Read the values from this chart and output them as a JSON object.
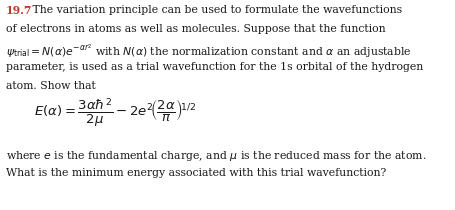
{
  "background_color": "#ffffff",
  "problem_number": "19.7",
  "number_color": "#c0392b",
  "text_color": "#1a1a1a",
  "line1_after": " The variation principle can be used to formulate the wavefunctions",
  "line2": "of electrons in atoms as well as molecules. Suppose that the function",
  "line3a": "$\\psi_{\\mathrm{trial}} = N(\\alpha)e^{-\\alpha r^2}$",
  "line3b": " with $N(\\alpha)$ the normalization constant and $\\alpha$ an adjustable",
  "line4": "parameter, is used as a trial wavefunction for the 1s orbital of the hydrogen",
  "line5": "atom. Show that",
  "equation": "$E(\\alpha) = \\dfrac{3\\alpha\\hbar^2}{2\\mu} - 2e^2\\!\\left(\\dfrac{2\\alpha}{\\pi}\\right)^{\\!1/2}$",
  "foot1": "where $e$ is the fundamental charge, and $\\mu$ is the reduced mass for the atom.",
  "foot2": "What is the minimum energy associated with this trial wavefunction?",
  "fontsize_body": 7.8,
  "fontsize_eq": 9.5,
  "figsize": [
    4.56,
    2.1
  ],
  "dpi": 100
}
